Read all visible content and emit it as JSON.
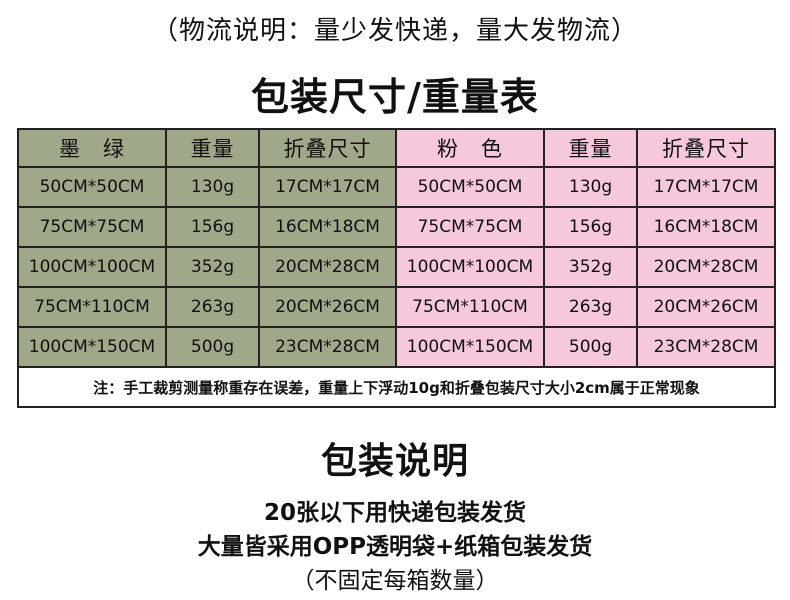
{
  "top_note": "（物流说明：量少发快递，量大发物流）",
  "title": "包装尺寸/重量表",
  "table": {
    "headers": {
      "green_color": "墨　绿",
      "weight_1": "重量",
      "folded_size_1": "折叠尺寸",
      "pink_color": "粉　色",
      "weight_2": "重量",
      "folded_size_2": "折叠尺寸"
    },
    "rows": [
      [
        "50CM*50CM",
        "130g",
        "17CM*17CM",
        "50CM*50CM",
        "130g",
        "17CM*17CM"
      ],
      [
        "75CM*75CM",
        "156g",
        "16CM*18CM",
        "75CM*75CM",
        "156g",
        "16CM*18CM"
      ],
      [
        "100CM*100CM",
        "352g",
        "20CM*28CM",
        "100CM*100CM",
        "352g",
        "20CM*28CM"
      ],
      [
        "75CM*110CM",
        "263g",
        "20CM*26CM",
        "75CM*110CM",
        "263g",
        "20CM*26CM"
      ],
      [
        "100CM*150CM",
        "500g",
        "23CM*28CM",
        "100CM*150CM",
        "500g",
        "23CM*28CM"
      ]
    ],
    "note": "注：手工裁剪测量称重存在误差，重量上下浮动10g和折叠包装尺寸大小2cm属于正常现象"
  },
  "packaging": {
    "title": "包装说明",
    "line1": "20张以下用快递包装发货",
    "line2": "大量皆采用OPP透明袋+纸箱包装发货",
    "line3": "（不固定每箱数量）"
  },
  "colors": {
    "green_bg": "#9fa98a",
    "pink_bg": "#f6c8dc",
    "border": "#222222"
  }
}
